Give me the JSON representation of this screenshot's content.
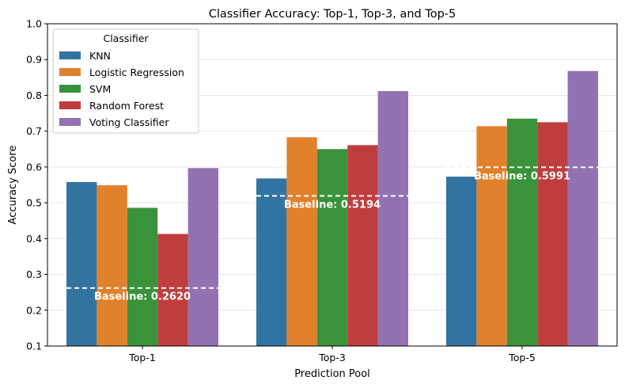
{
  "chart_data": {
    "type": "bar",
    "title": "Classifier Accuracy: Top-1, Top-3, and Top-5",
    "xlabel": "Prediction Pool",
    "ylabel": "Accuracy Score",
    "ylim": [
      0.1,
      1.0
    ],
    "yticks": [
      "0.1",
      "0.2",
      "0.3",
      "0.4",
      "0.5",
      "0.6",
      "0.7",
      "0.8",
      "0.9",
      "1.0"
    ],
    "categories": [
      "Top-1",
      "Top-3",
      "Top-5"
    ],
    "grid": "horizontal",
    "legend": {
      "title": "Classifier",
      "placement": "top-left"
    },
    "series": [
      {
        "name": "KNN",
        "color": "#3274a1",
        "values": [
          0.558,
          0.568,
          0.573
        ]
      },
      {
        "name": "Logistic Regression",
        "color": "#e1812c",
        "values": [
          0.549,
          0.683,
          0.714
        ]
      },
      {
        "name": "SVM",
        "color": "#3a923a",
        "values": [
          0.486,
          0.65,
          0.735
        ]
      },
      {
        "name": "Random Forest",
        "color": "#c03d3e",
        "values": [
          0.413,
          0.661,
          0.725
        ]
      },
      {
        "name": "Voting Classifier",
        "color": "#9372b2",
        "values": [
          0.597,
          0.812,
          0.868
        ]
      }
    ],
    "baselines": [
      {
        "value": 0.262,
        "label": "Baseline: 0.2620"
      },
      {
        "value": 0.5194,
        "label": "Baseline: 0.5194"
      },
      {
        "value": 0.5991,
        "label": "Baseline: 0.5991"
      }
    ]
  }
}
